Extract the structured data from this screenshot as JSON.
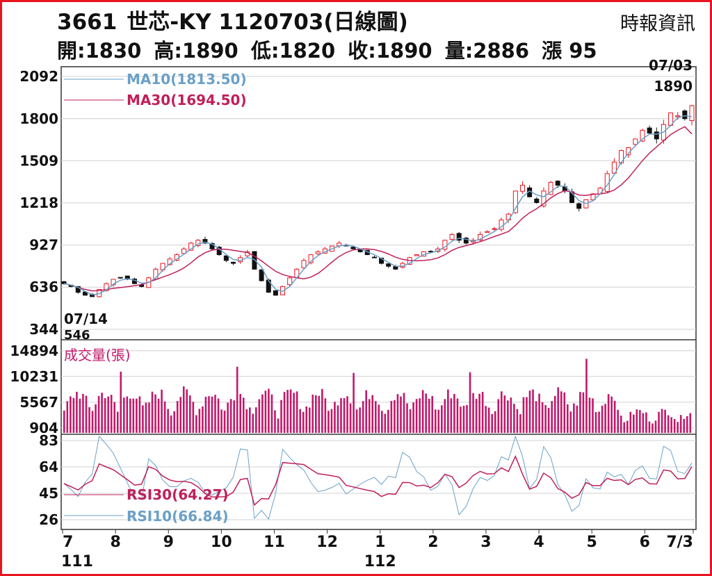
{
  "header": {
    "stock_code": "3661",
    "stock_name": "世芯-KY",
    "title_rest": "1120703(日線圖)",
    "source": "時報資訊",
    "open": "開:1830",
    "high": "高:1890",
    "low": "低:1820",
    "close": "收:1890",
    "volume": "量:2886",
    "change": "漲 95"
  },
  "colors": {
    "border": "#e8141e",
    "up": "#e8141e",
    "down": "#111111",
    "ma10": "#6aa0c8",
    "ma30": "#c01f5a",
    "volume": "#c0186a",
    "grid": "#d0d0d0"
  },
  "chart_data": [
    {
      "type": "candlestick",
      "y_ticks": [
        "2092",
        "1800",
        "1509",
        "1218",
        "927",
        "636",
        "344"
      ],
      "ylim": [
        344,
        2092
      ],
      "legend": [
        {
          "name": "MA10(1813.50)",
          "color": "#6aa0c8"
        },
        {
          "name": "MA30(1694.50)",
          "color": "#c01f5a"
        }
      ],
      "annotations": [
        {
          "date": "07/14",
          "value": "546"
        },
        {
          "date": "07/03",
          "value": "1890"
        }
      ],
      "close_series": [
        660,
        640,
        600,
        580,
        570,
        620,
        660,
        690,
        700,
        690,
        660,
        640,
        700,
        760,
        800,
        830,
        860,
        900,
        940,
        960,
        940,
        900,
        860,
        820,
        800,
        840,
        880,
        760,
        680,
        600,
        580,
        640,
        700,
        760,
        820,
        860,
        880,
        900,
        920,
        940,
        920,
        900,
        880,
        860,
        840,
        800,
        780,
        760,
        800,
        840,
        860,
        880,
        880,
        900,
        960,
        1000,
        960,
        940,
        960,
        1000,
        1020,
        1040,
        1100,
        1140,
        1300,
        1340,
        1260,
        1220,
        1300,
        1360,
        1340,
        1300,
        1220,
        1180,
        1240,
        1280,
        1320,
        1420,
        1500,
        1580,
        1600,
        1660,
        1720,
        1700,
        1660,
        1760,
        1840,
        1820,
        1800,
        1890
      ],
      "ma10_end": 1813.5,
      "ma30_end": 1694.5
    },
    {
      "type": "bar",
      "title": "成交量(張)",
      "y_ticks": [
        "14894",
        "10231",
        "5567",
        "904"
      ],
      "ylim": [
        0,
        15500
      ]
    },
    {
      "type": "line",
      "y_ticks": [
        "83",
        "64",
        "45",
        "26"
      ],
      "ylim": [
        20,
        86
      ],
      "series": [
        {
          "name": "RSI30(64.27)",
          "color": "#c01f5a"
        },
        {
          "name": "RSI10(66.84)",
          "color": "#6aa0c8"
        }
      ],
      "rsi30_end": 64.27,
      "rsi10_end": 66.84
    }
  ],
  "x_axis": {
    "months": [
      "7",
      "8",
      "9",
      "10",
      "11",
      "12",
      "1",
      "2",
      "3",
      "4",
      "5",
      "6",
      "7/3"
    ],
    "years": [
      "111",
      "112"
    ]
  }
}
